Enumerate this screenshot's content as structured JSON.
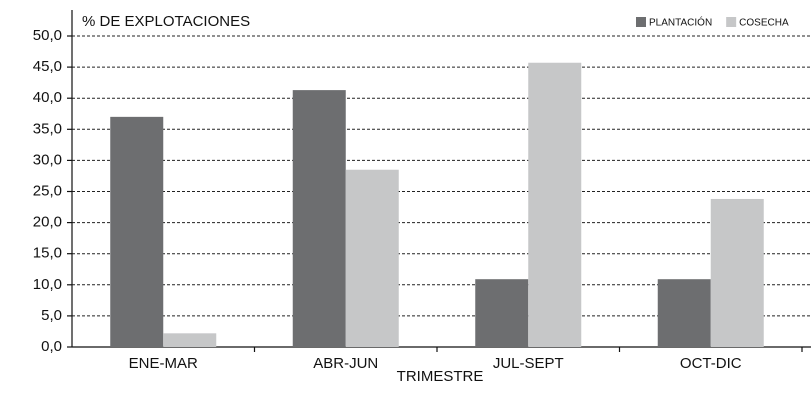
{
  "chart_data": {
    "type": "bar",
    "y_label": "% DE EXPLOTACIONES",
    "x_label": "TRIMESTRE",
    "categories": [
      "ENE-MAR",
      "ABR-JUN",
      "JUL-SEPT",
      "OCT-DIC"
    ],
    "series": [
      {
        "name": "PLANTACIÓN",
        "color": "#6d6e70",
        "values": [
          37.0,
          41.3,
          10.9,
          10.9
        ]
      },
      {
        "name": "COSECHA",
        "color": "#c6c7c8",
        "values": [
          2.2,
          28.5,
          45.7,
          23.8
        ]
      }
    ],
    "ylim": [
      0,
      50
    ],
    "yticks": [
      {
        "value": 0,
        "label": "0,0"
      },
      {
        "value": 5,
        "label": "5,0"
      },
      {
        "value": 10,
        "label": "10,0"
      },
      {
        "value": 15,
        "label": "15,0"
      },
      {
        "value": 20,
        "label": "20,0"
      },
      {
        "value": 25,
        "label": "25,0"
      },
      {
        "value": 30,
        "label": "30,0"
      },
      {
        "value": 35,
        "label": "35,0"
      },
      {
        "value": 40,
        "label": "40,0"
      },
      {
        "value": 45,
        "label": "45,0"
      },
      {
        "value": 50,
        "label": "50,0"
      }
    ],
    "grid": true,
    "legend": "top-right"
  }
}
